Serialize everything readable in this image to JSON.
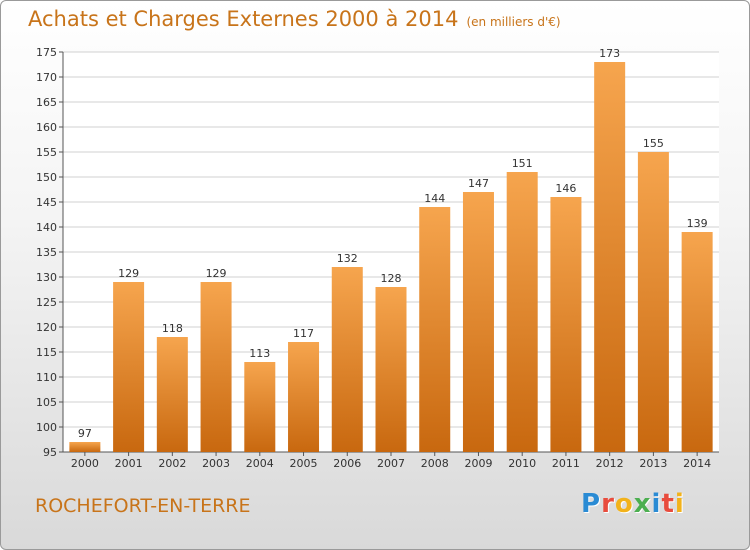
{
  "header": {
    "title": "Achats et Charges Externes 2000 à 2014",
    "unit": "(en milliers d'€)"
  },
  "footer": {
    "commune": "ROCHEFORT-EN-TERRE",
    "logo_text": "Proxiti"
  },
  "colors": {
    "title": "#c8741a",
    "bar_light": "#f6a54e",
    "bar_dark": "#c8680f",
    "grid": "#d0d0d0",
    "axis": "#555555"
  },
  "chart_data": {
    "type": "bar",
    "title": "Achats et Charges Externes 2000 à 2014",
    "subtitle": "(en milliers d'€)",
    "categories": [
      "2000",
      "2001",
      "2002",
      "2003",
      "2004",
      "2005",
      "2006",
      "2007",
      "2008",
      "2009",
      "2010",
      "2011",
      "2012",
      "2013",
      "2014"
    ],
    "values": [
      97,
      129,
      118,
      129,
      113,
      117,
      132,
      128,
      144,
      147,
      151,
      146,
      173,
      155,
      139
    ],
    "ylim": [
      95,
      175
    ],
    "yticks": [
      95,
      100,
      105,
      110,
      115,
      120,
      125,
      130,
      135,
      140,
      145,
      150,
      155,
      160,
      165,
      170,
      175
    ],
    "grid": true,
    "data_labels": true,
    "legend": "none"
  }
}
